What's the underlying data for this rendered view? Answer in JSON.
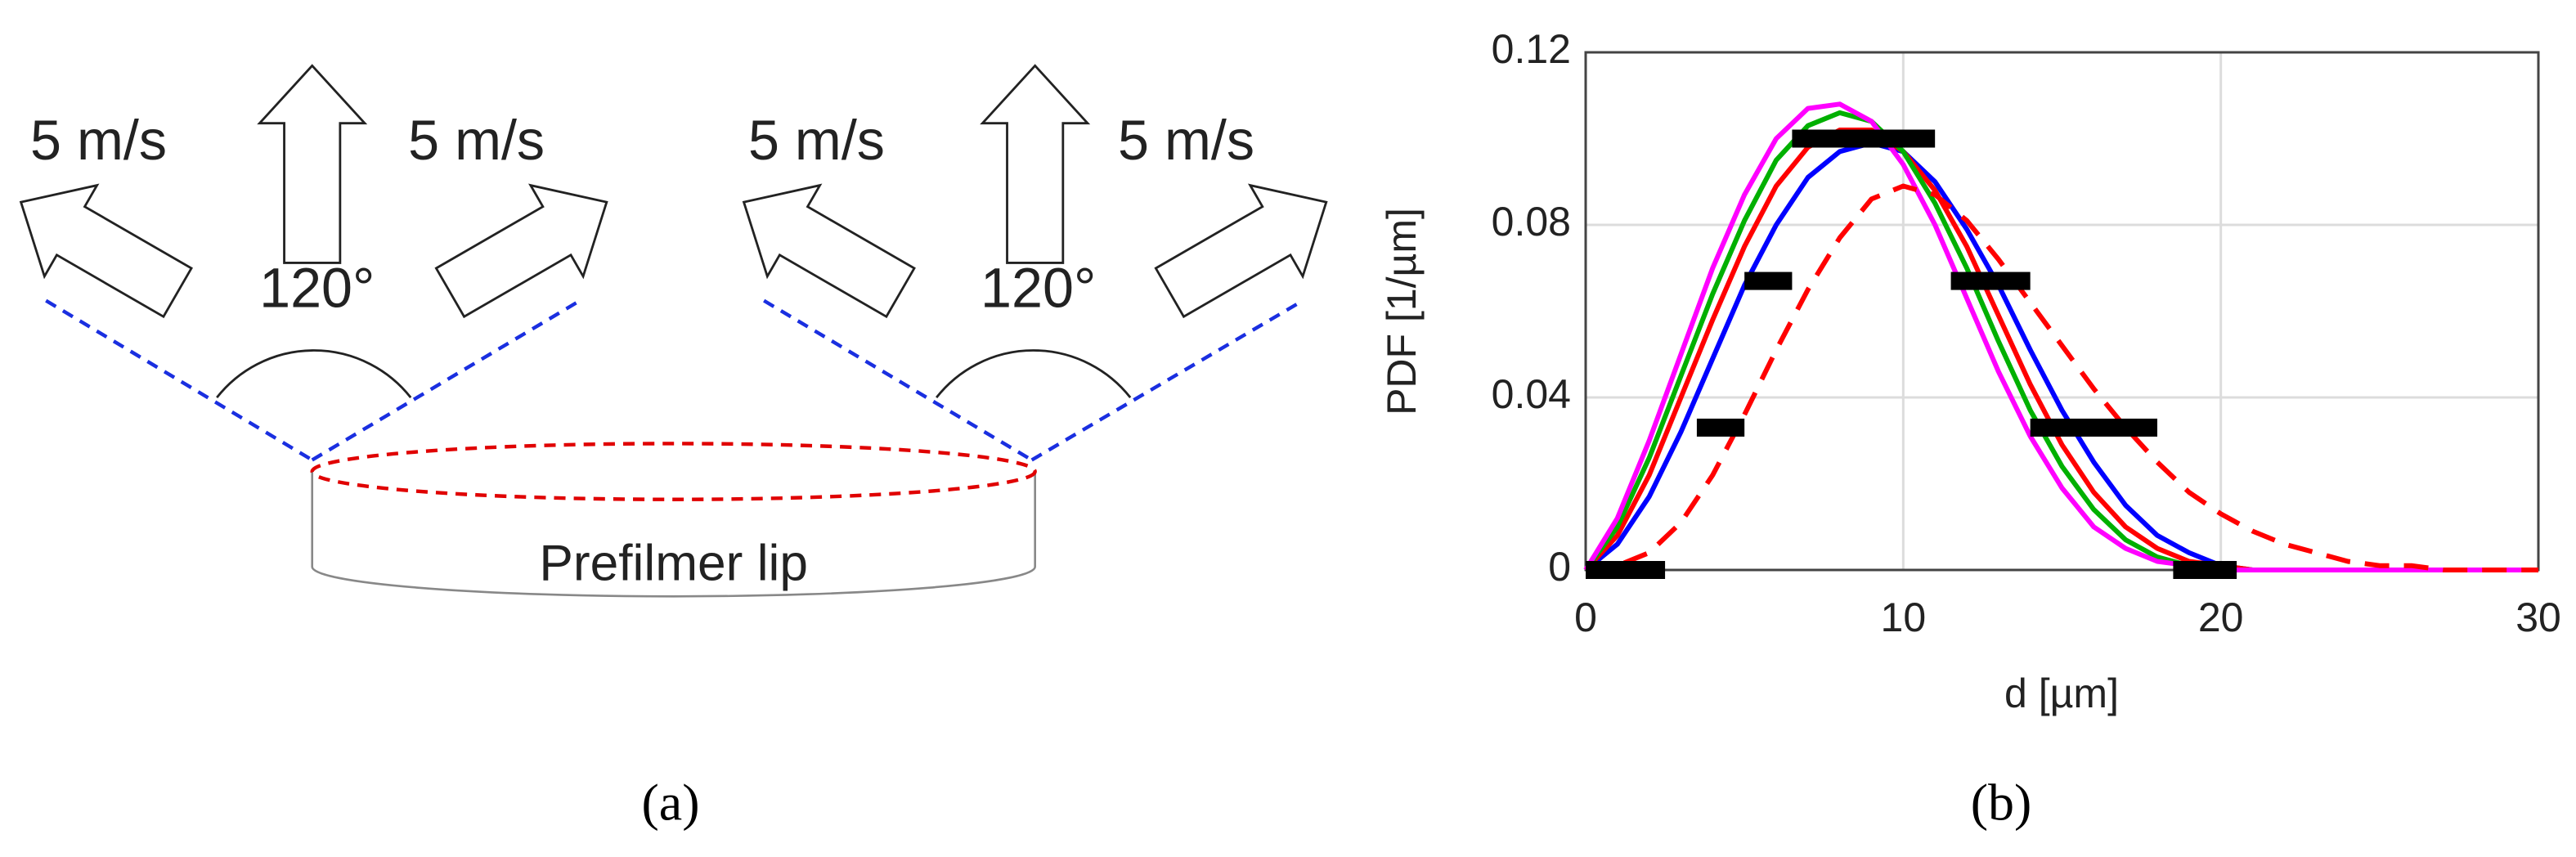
{
  "diagram": {
    "speed_labels": [
      "5 m/s",
      "5 m/s",
      "5 m/s",
      "5 m/s"
    ],
    "angle_labels": [
      "120°",
      "120°"
    ],
    "lip_label": "Prefilmer lip",
    "caption": "(a)"
  },
  "chart_data": {
    "type": "line",
    "caption": "(b)",
    "xlabel": "d [µm]",
    "ylabel": "PDF [1/µm]",
    "xlim": [
      0,
      30
    ],
    "ylim": [
      0,
      0.12
    ],
    "xticks": [
      0,
      10,
      20,
      30
    ],
    "yticks": [
      0,
      0.04,
      0.08,
      0.12
    ],
    "grid": true,
    "x": [
      0,
      1,
      2,
      3,
      4,
      5,
      6,
      7,
      8,
      9,
      10,
      11,
      12,
      13,
      14,
      15,
      16,
      17,
      18,
      19,
      20,
      21,
      22,
      23,
      24,
      25,
      26,
      27,
      28,
      29,
      30
    ],
    "series": [
      {
        "color": "#0000ff",
        "values": [
          0,
          0.006,
          0.017,
          0.032,
          0.049,
          0.066,
          0.08,
          0.091,
          0.097,
          0.099,
          0.097,
          0.09,
          0.079,
          0.066,
          0.051,
          0.037,
          0.025,
          0.015,
          0.008,
          0.004,
          0.001,
          0,
          0,
          0,
          0,
          0,
          0,
          0,
          0,
          0,
          0
        ]
      },
      {
        "color": "#ff0000",
        "values": [
          0,
          0.008,
          0.022,
          0.04,
          0.058,
          0.075,
          0.089,
          0.098,
          0.102,
          0.102,
          0.097,
          0.088,
          0.075,
          0.059,
          0.043,
          0.029,
          0.018,
          0.01,
          0.005,
          0.002,
          0.001,
          0,
          0,
          0,
          0,
          0,
          0,
          0,
          0,
          0,
          0
        ]
      },
      {
        "color": "#00b000",
        "values": [
          0,
          0.01,
          0.026,
          0.045,
          0.064,
          0.081,
          0.095,
          0.103,
          0.106,
          0.104,
          0.097,
          0.085,
          0.07,
          0.053,
          0.037,
          0.024,
          0.014,
          0.007,
          0.003,
          0.001,
          0,
          0,
          0,
          0,
          0,
          0,
          0,
          0,
          0,
          0,
          0
        ]
      },
      {
        "color": "#ff00ff",
        "values": [
          0,
          0.012,
          0.03,
          0.05,
          0.07,
          0.087,
          0.1,
          0.107,
          0.108,
          0.104,
          0.094,
          0.08,
          0.063,
          0.046,
          0.031,
          0.019,
          0.01,
          0.005,
          0.002,
          0.001,
          0,
          0,
          0,
          0,
          0,
          0,
          0,
          0,
          0,
          0,
          0
        ]
      },
      {
        "color": "#ff0000",
        "dashed": true,
        "values": [
          0,
          0.001,
          0.004,
          0.011,
          0.022,
          0.036,
          0.051,
          0.065,
          0.077,
          0.086,
          0.089,
          0.087,
          0.081,
          0.072,
          0.062,
          0.052,
          0.042,
          0.033,
          0.025,
          0.018,
          0.013,
          0.009,
          0.006,
          0.004,
          0.002,
          0.001,
          0.001,
          0,
          0,
          0,
          0
        ]
      }
    ],
    "bars": {
      "color": "#000000",
      "x_start": [
        0,
        3.5,
        5,
        6.5,
        11.5,
        14,
        18.5
      ],
      "x_end": [
        2.5,
        5,
        6.5,
        11,
        14,
        18,
        20.5
      ],
      "values": [
        0,
        0.033,
        0.067,
        0.1,
        0.067,
        0.033,
        0
      ]
    }
  }
}
